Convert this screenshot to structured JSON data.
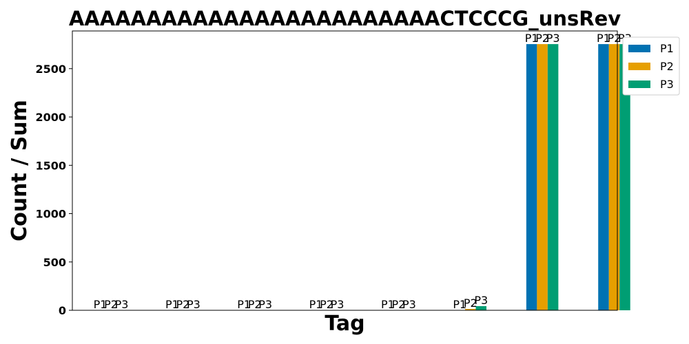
{
  "chart_data": {
    "type": "bar",
    "title": "AAAAAAAAAAAAAAAAAAAAAAAACTCCCG_unsRev",
    "xlabel": "Tag",
    "ylabel": "Count / Sum",
    "categories": [
      "",
      "",
      "",
      "",
      "",
      "",
      "",
      ""
    ],
    "series": [
      {
        "name": "P1",
        "color": "#0072b2",
        "values": [
          0,
          0,
          0,
          0,
          0,
          0,
          2754,
          2754
        ]
      },
      {
        "name": "P2",
        "color": "#e69f00",
        "values": [
          0,
          0,
          0,
          0,
          0,
          14,
          2754,
          2754
        ]
      },
      {
        "name": "P3",
        "color": "#009e73",
        "values": [
          0,
          0,
          0,
          0,
          0,
          43,
          2754,
          2754
        ]
      }
    ],
    "ylim": [
      0,
      2890
    ],
    "yticks": [
      0,
      500,
      1000,
      1500,
      2000,
      2500
    ],
    "bar_labels": true,
    "grid": false,
    "legend_position": "outside-top-right"
  }
}
